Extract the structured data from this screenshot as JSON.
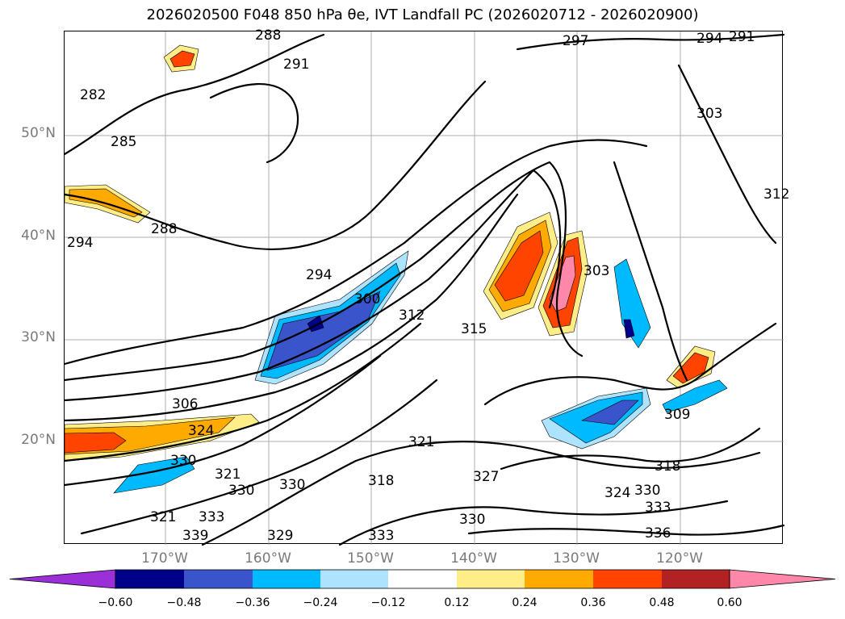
{
  "title": "2026020500 F048 850 hPa θe, IVT Landfall PC (2026020712 - 2026020900)",
  "map": {
    "lat_labels": [
      "50°N",
      "40°N",
      "30°N",
      "20°N"
    ],
    "lon_labels": [
      "170°W",
      "160°W",
      "150°W",
      "140°W",
      "130°W",
      "120°W"
    ],
    "contour_labels": [
      "288",
      "291",
      "282",
      "285",
      "288",
      "294",
      "294",
      "297",
      "294",
      "291",
      "303",
      "312",
      "300",
      "312",
      "315",
      "303",
      "306",
      "324",
      "330",
      "321",
      "330",
      "309",
      "318",
      "321",
      "327",
      "318",
      "330",
      "321",
      "324",
      "330",
      "333",
      "336",
      "339",
      "333",
      "329",
      "333",
      "330"
    ]
  },
  "colorbar": {
    "colors": [
      "#9b30d8",
      "#000088",
      "#3a55cc",
      "#00baff",
      "#aee3ff",
      "#ffffff",
      "#ffee88",
      "#ffaa00",
      "#ff4400",
      "#b22222",
      "#ff88aa"
    ],
    "tick_labels": [
      "−0.60",
      "−0.48",
      "−0.36",
      "−0.24",
      "−0.12",
      "0.12",
      "0.24",
      "0.36",
      "0.48",
      "0.60"
    ]
  }
}
